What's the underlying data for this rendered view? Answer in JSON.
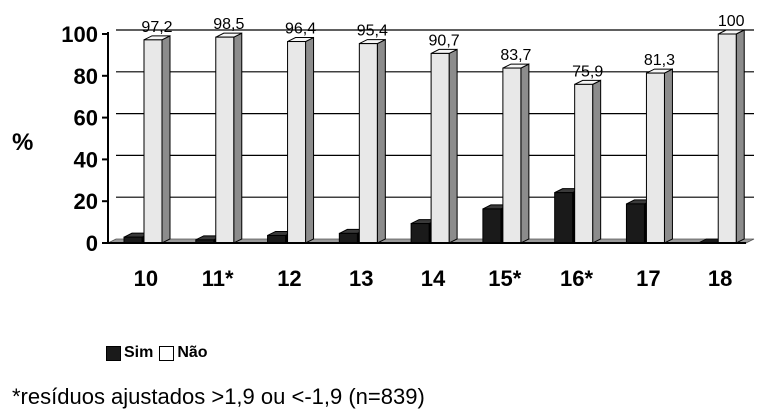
{
  "chart_data": {
    "type": "bar",
    "ylabel": "%",
    "ylim": [
      0,
      100
    ],
    "yticks": [
      "0",
      "20",
      "40",
      "60",
      "80",
      "100"
    ],
    "categories": [
      "10",
      "11*",
      "12",
      "13",
      "14",
      "15*",
      "16*",
      "17",
      "18"
    ],
    "series": [
      {
        "name": "Sim",
        "color": "#1a1a1a",
        "values": [
          2.8,
          1.5,
          3.6,
          4.6,
          9.3,
          16.3,
          24.1,
          18.7,
          0
        ]
      },
      {
        "name": "Não",
        "color": "#e6e6e6",
        "values": [
          97.2,
          98.5,
          96.4,
          95.4,
          90.7,
          83.7,
          75.9,
          81.3,
          100
        ]
      }
    ],
    "data_labels": [
      "97,2",
      "98,5",
      "96,4",
      "95,4",
      "90,7",
      "83,7",
      "75,9",
      "81,3",
      "100"
    ],
    "grid": true,
    "legend_position": "bottom-left"
  },
  "legend": {
    "sim": "Sim",
    "nao": "Não"
  },
  "footnote": "*resíduos ajustados >1,9 ou <-1,9 (n=839)"
}
